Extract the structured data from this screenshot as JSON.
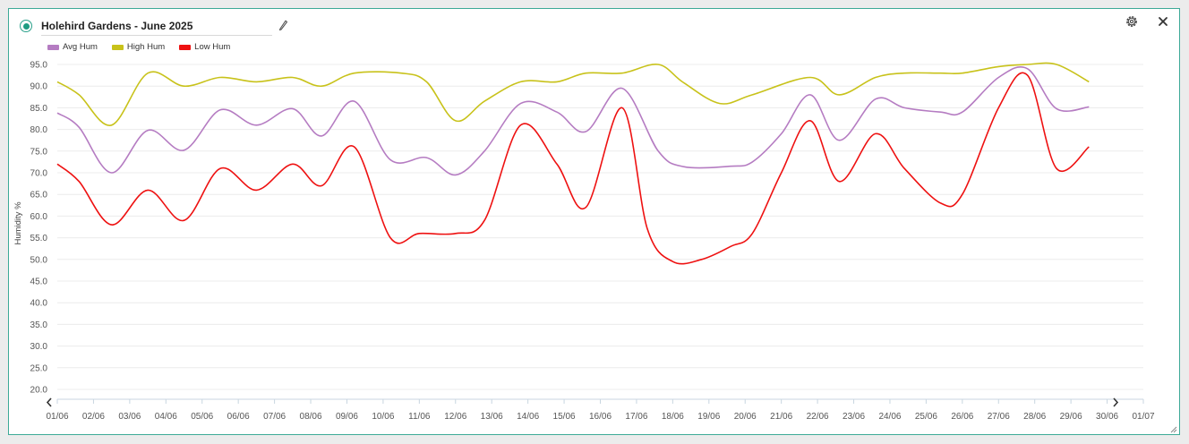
{
  "header": {
    "title": "Holehird Gardens - June 2025",
    "status": "active"
  },
  "icons": {
    "edit": "pencil-icon",
    "settings": "gear-icon",
    "close": "close-icon",
    "prev": "chevron-left-icon",
    "next": "chevron-right-icon",
    "resize": "resize-handle-icon"
  },
  "colors": {
    "border": "#3daa97",
    "avg": "#b57cc2",
    "high": "#c8c21a",
    "low": "#ee1111"
  },
  "chart_data": {
    "type": "line",
    "ylabel": "Humidity %",
    "ylim": [
      20,
      95
    ],
    "yticks": [
      "95.0",
      "90.0",
      "85.0",
      "80.0",
      "75.0",
      "70.0",
      "65.0",
      "60.0",
      "55.0",
      "50.0",
      "45.0",
      "40.0",
      "35.0",
      "30.0",
      "25.0",
      "20.0"
    ],
    "xticks": [
      "01/06",
      "02/06",
      "03/06",
      "04/06",
      "05/06",
      "06/06",
      "07/06",
      "08/06",
      "09/06",
      "10/06",
      "11/06",
      "12/06",
      "13/06",
      "14/06",
      "15/06",
      "16/06",
      "17/06",
      "18/06",
      "19/06",
      "20/06",
      "21/06",
      "22/06",
      "23/06",
      "24/06",
      "25/06",
      "26/06",
      "27/06",
      "28/06",
      "29/06",
      "30/06",
      "01/07"
    ],
    "grid": true,
    "legend": "top-left",
    "series": [
      {
        "name": "Avg Hum",
        "color": "#b57cc2",
        "points": [
          [
            1.0,
            83.8
          ],
          [
            1.6,
            80.5
          ],
          [
            2.5,
            70.0
          ],
          [
            3.5,
            79.8
          ],
          [
            4.5,
            75.2
          ],
          [
            5.5,
            84.5
          ],
          [
            6.5,
            81.0
          ],
          [
            7.5,
            84.8
          ],
          [
            8.3,
            78.5
          ],
          [
            9.2,
            86.5
          ],
          [
            10.2,
            73.0
          ],
          [
            11.2,
            73.5
          ],
          [
            12.0,
            69.5
          ],
          [
            12.8,
            75.0
          ],
          [
            13.8,
            86.0
          ],
          [
            14.8,
            84.0
          ],
          [
            15.6,
            79.5
          ],
          [
            16.6,
            89.5
          ],
          [
            17.6,
            75.0
          ],
          [
            18.3,
            71.4
          ],
          [
            19.6,
            71.5
          ],
          [
            20.2,
            72.5
          ],
          [
            21.0,
            79.0
          ],
          [
            21.8,
            88.0
          ],
          [
            22.6,
            77.5
          ],
          [
            23.6,
            87.0
          ],
          [
            24.4,
            85.0
          ],
          [
            25.4,
            84.0
          ],
          [
            26.0,
            84.0
          ],
          [
            27.0,
            92.0
          ],
          [
            27.8,
            94.0
          ],
          [
            28.6,
            84.8
          ],
          [
            29.5,
            85.2
          ]
        ]
      },
      {
        "name": "High Hum",
        "color": "#c8c21a",
        "points": [
          [
            1.0,
            91.0
          ],
          [
            1.6,
            88.0
          ],
          [
            2.5,
            81.0
          ],
          [
            3.5,
            93.0
          ],
          [
            4.5,
            90.0
          ],
          [
            5.5,
            92.0
          ],
          [
            6.5,
            91.0
          ],
          [
            7.5,
            92.0
          ],
          [
            8.3,
            90.0
          ],
          [
            9.2,
            93.0
          ],
          [
            10.5,
            93.0
          ],
          [
            11.2,
            91.0
          ],
          [
            12.0,
            82.0
          ],
          [
            12.8,
            86.5
          ],
          [
            13.8,
            91.0
          ],
          [
            14.8,
            91.0
          ],
          [
            15.6,
            93.0
          ],
          [
            16.6,
            93.0
          ],
          [
            17.6,
            95.0
          ],
          [
            18.3,
            90.8
          ],
          [
            19.3,
            86.0
          ],
          [
            20.2,
            88.0
          ],
          [
            21.8,
            92.0
          ],
          [
            22.6,
            88.0
          ],
          [
            23.6,
            92.0
          ],
          [
            24.4,
            93.0
          ],
          [
            25.4,
            93.0
          ],
          [
            26.0,
            93.0
          ],
          [
            27.0,
            94.5
          ],
          [
            27.8,
            95.0
          ],
          [
            28.6,
            95.0
          ],
          [
            29.5,
            91.0
          ]
        ]
      },
      {
        "name": "Low Hum",
        "color": "#ee1111",
        "points": [
          [
            1.0,
            72.0
          ],
          [
            1.6,
            68.0
          ],
          [
            2.5,
            58.0
          ],
          [
            3.5,
            66.0
          ],
          [
            4.5,
            59.0
          ],
          [
            5.5,
            71.0
          ],
          [
            6.5,
            66.0
          ],
          [
            7.5,
            72.0
          ],
          [
            8.3,
            67.0
          ],
          [
            9.2,
            76.0
          ],
          [
            10.2,
            55.0
          ],
          [
            11.0,
            56.0
          ],
          [
            12.0,
            56.0
          ],
          [
            12.8,
            59.0
          ],
          [
            13.8,
            81.0
          ],
          [
            14.8,
            72.0
          ],
          [
            15.6,
            62.0
          ],
          [
            16.6,
            85.0
          ],
          [
            17.3,
            57.0
          ],
          [
            18.0,
            49.5
          ],
          [
            18.8,
            50.0
          ],
          [
            19.6,
            53.0
          ],
          [
            20.2,
            56.0
          ],
          [
            21.0,
            70.0
          ],
          [
            21.8,
            82.0
          ],
          [
            22.6,
            68.0
          ],
          [
            23.6,
            79.0
          ],
          [
            24.4,
            71.0
          ],
          [
            25.4,
            63.0
          ],
          [
            26.0,
            65.0
          ],
          [
            27.0,
            85.0
          ],
          [
            27.8,
            92.5
          ],
          [
            28.6,
            71.0
          ],
          [
            29.5,
            76.0
          ]
        ]
      }
    ]
  }
}
